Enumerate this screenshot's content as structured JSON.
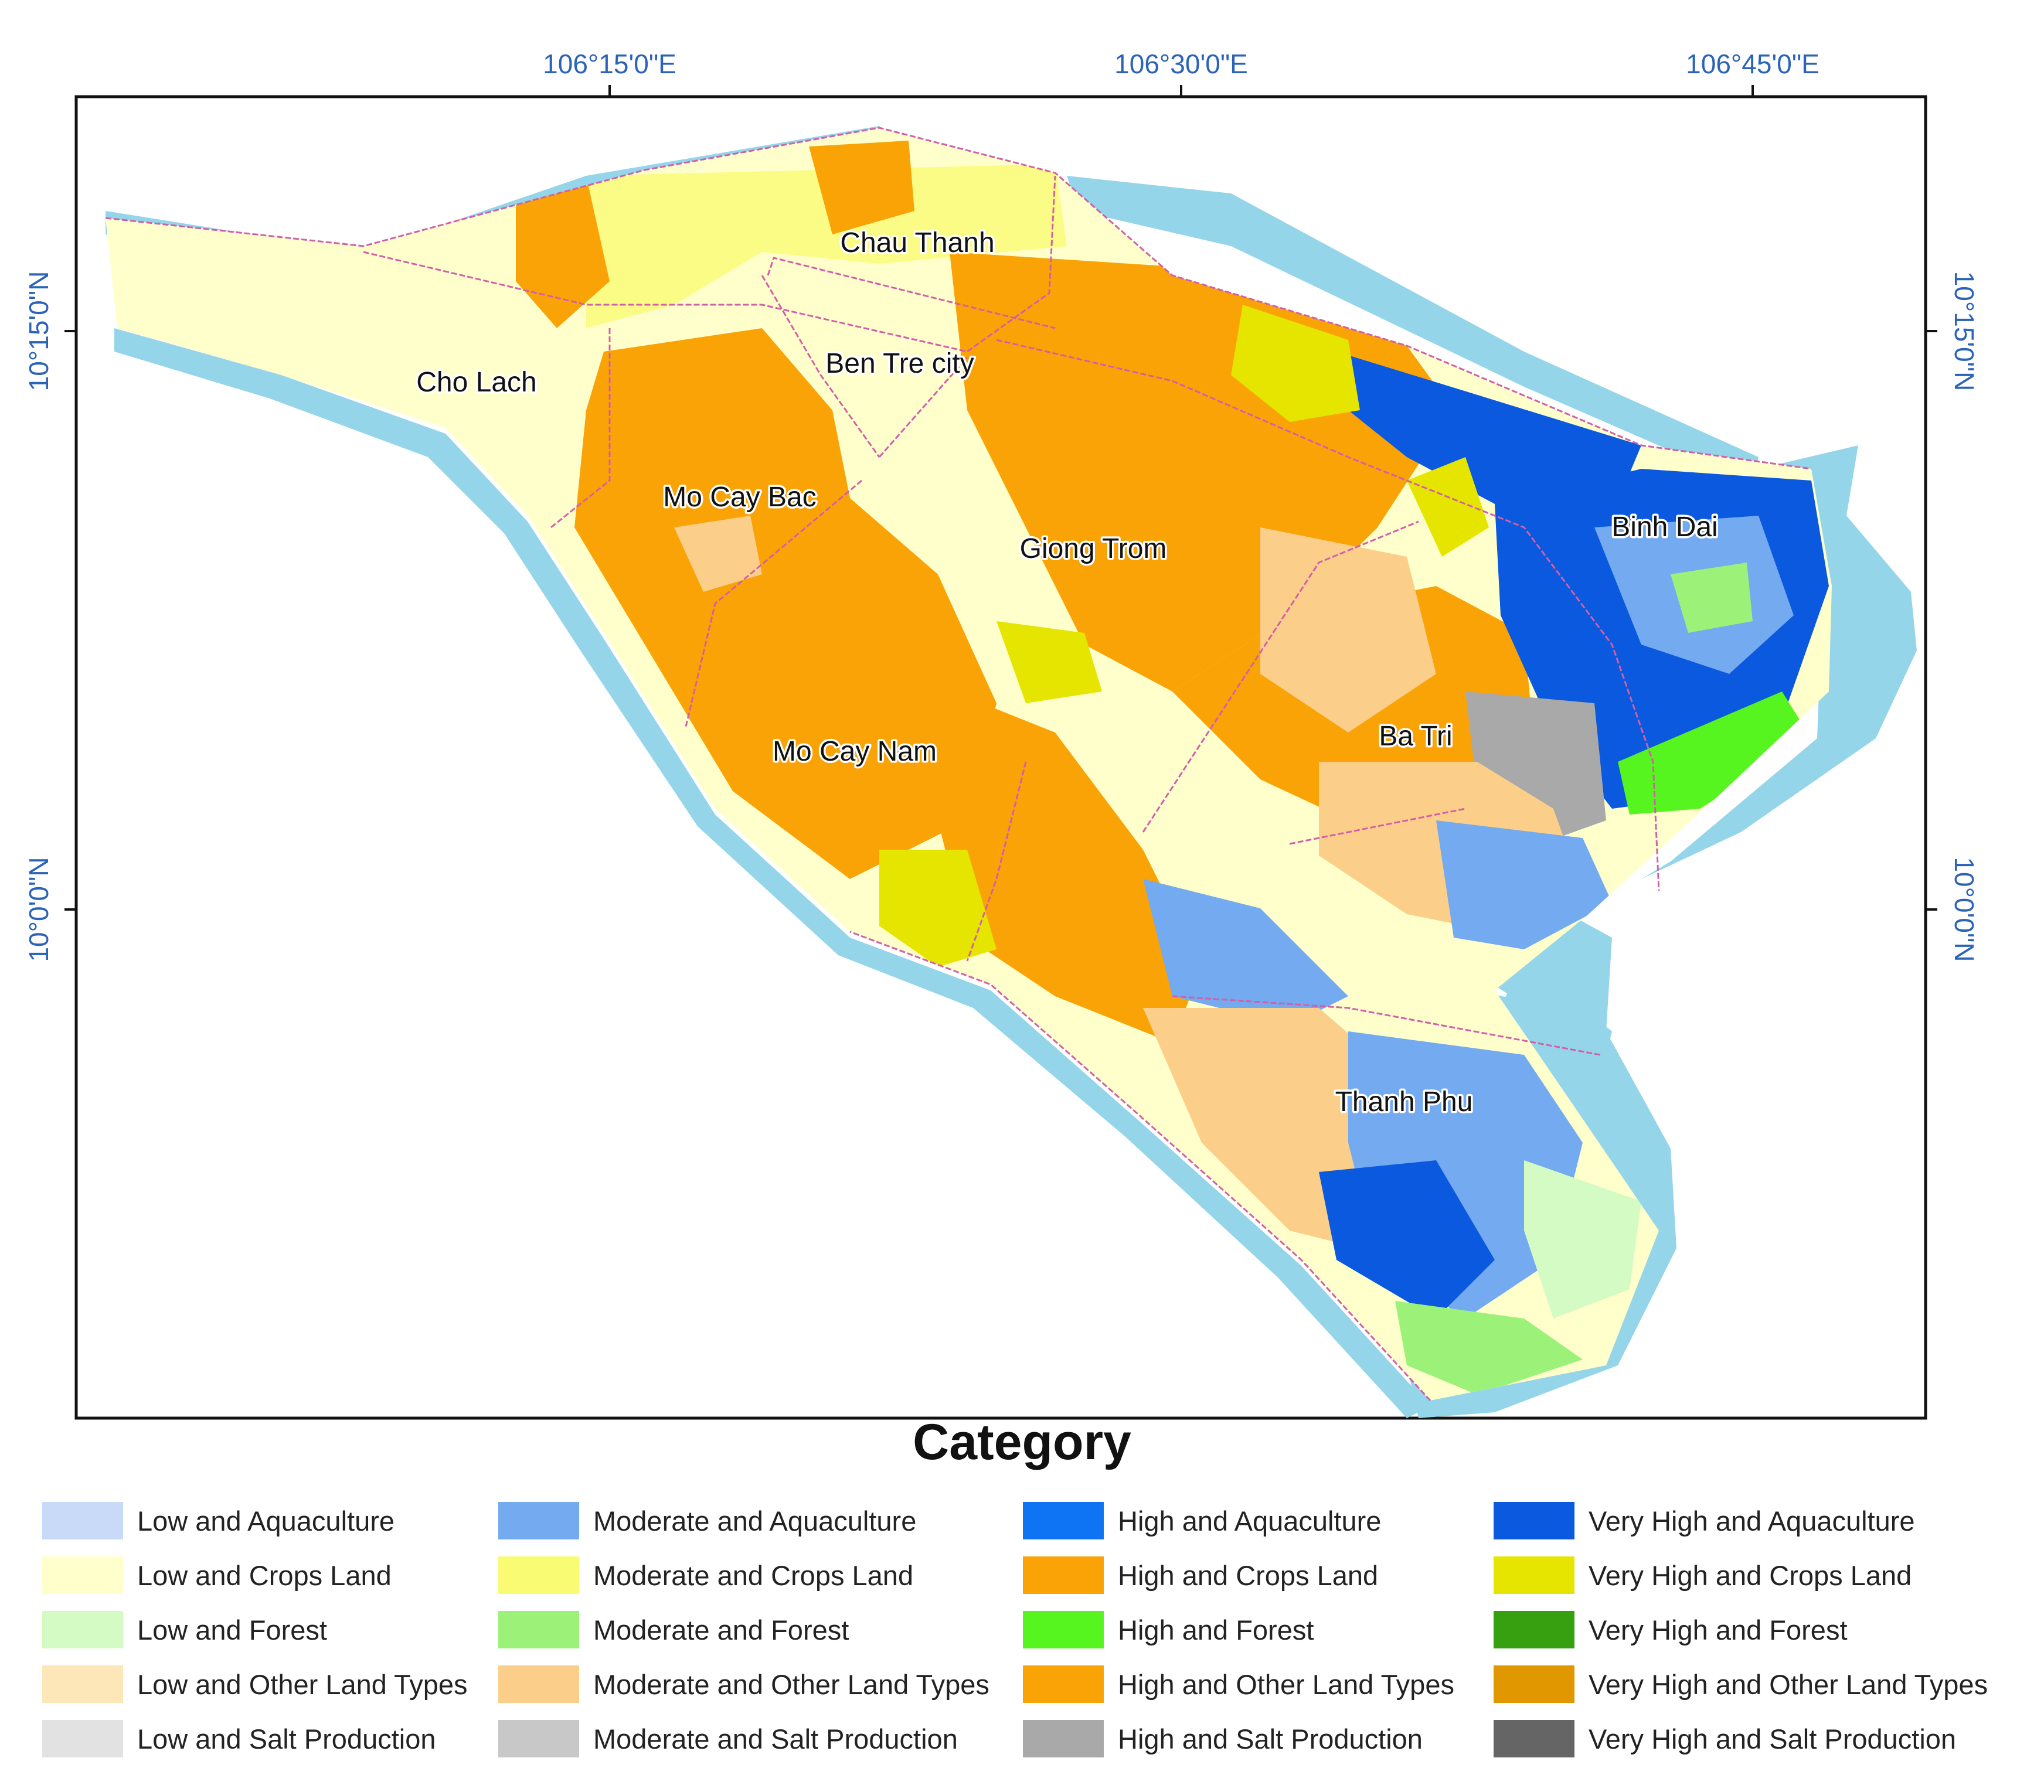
{
  "map": {
    "longitude_ticks": [
      "106°15'0\"E",
      "106°30'0\"E",
      "106°45'0\"E"
    ],
    "latitude_ticks": [
      "10°15'0\"N",
      "10°0'0\"N"
    ],
    "districts": [
      "Chau Thanh",
      "Ben Tre city",
      "Cho Lach",
      "Mo Cay Bac",
      "Giong Trom",
      "Binh Dai",
      "Ba Tri",
      "Mo Cay Nam",
      "Thanh Phu"
    ],
    "colors": {
      "water": "#95d5ea",
      "boundary": "#d35fa8",
      "frame": "#111111"
    }
  },
  "legend": {
    "title": "Category",
    "columns": [
      [
        {
          "label": "Low and Aquaculture",
          "color": "#c8daf8"
        },
        {
          "label": "Low and Crops Land",
          "color": "#ffffcc"
        },
        {
          "label": "Low and Forest",
          "color": "#d4fbc4"
        },
        {
          "label": "Low and Other Land Types",
          "color": "#fde6b8"
        },
        {
          "label": "Low and Salt Production",
          "color": "#e2e2e2"
        }
      ],
      [
        {
          "label": "Moderate and Aquaculture",
          "color": "#73aaf0"
        },
        {
          "label": "Moderate and Crops Land",
          "color": "#f9fb73"
        },
        {
          "label": "Moderate and Forest",
          "color": "#9cf279"
        },
        {
          "label": "Moderate and Other Land Types",
          "color": "#fbcf8a"
        },
        {
          "label": "Moderate and Salt Production",
          "color": "#c8c8c8"
        }
      ],
      [
        {
          "label": "High and Aquaculture",
          "color": "#0f74f4"
        },
        {
          "label": "High and  Crops Land",
          "color": "#f9a307"
        },
        {
          "label": "High and  Forest",
          "color": "#57f51f"
        },
        {
          "label": "High and  Other Land Types",
          "color": "#f9a307"
        },
        {
          "label": "High and  Salt Production",
          "color": "#a9a9a9"
        }
      ],
      [
        {
          "label": "Very High and Aquaculture",
          "color": "#0a59df"
        },
        {
          "label": "Very High and Crops Land",
          "color": "#e5e500"
        },
        {
          "label": "Very High and Forest",
          "color": "#36a011"
        },
        {
          "label": "Very High and Other Land Types",
          "color": "#e09700"
        },
        {
          "label": "Very High and Salt Production",
          "color": "#656565"
        }
      ]
    ]
  }
}
